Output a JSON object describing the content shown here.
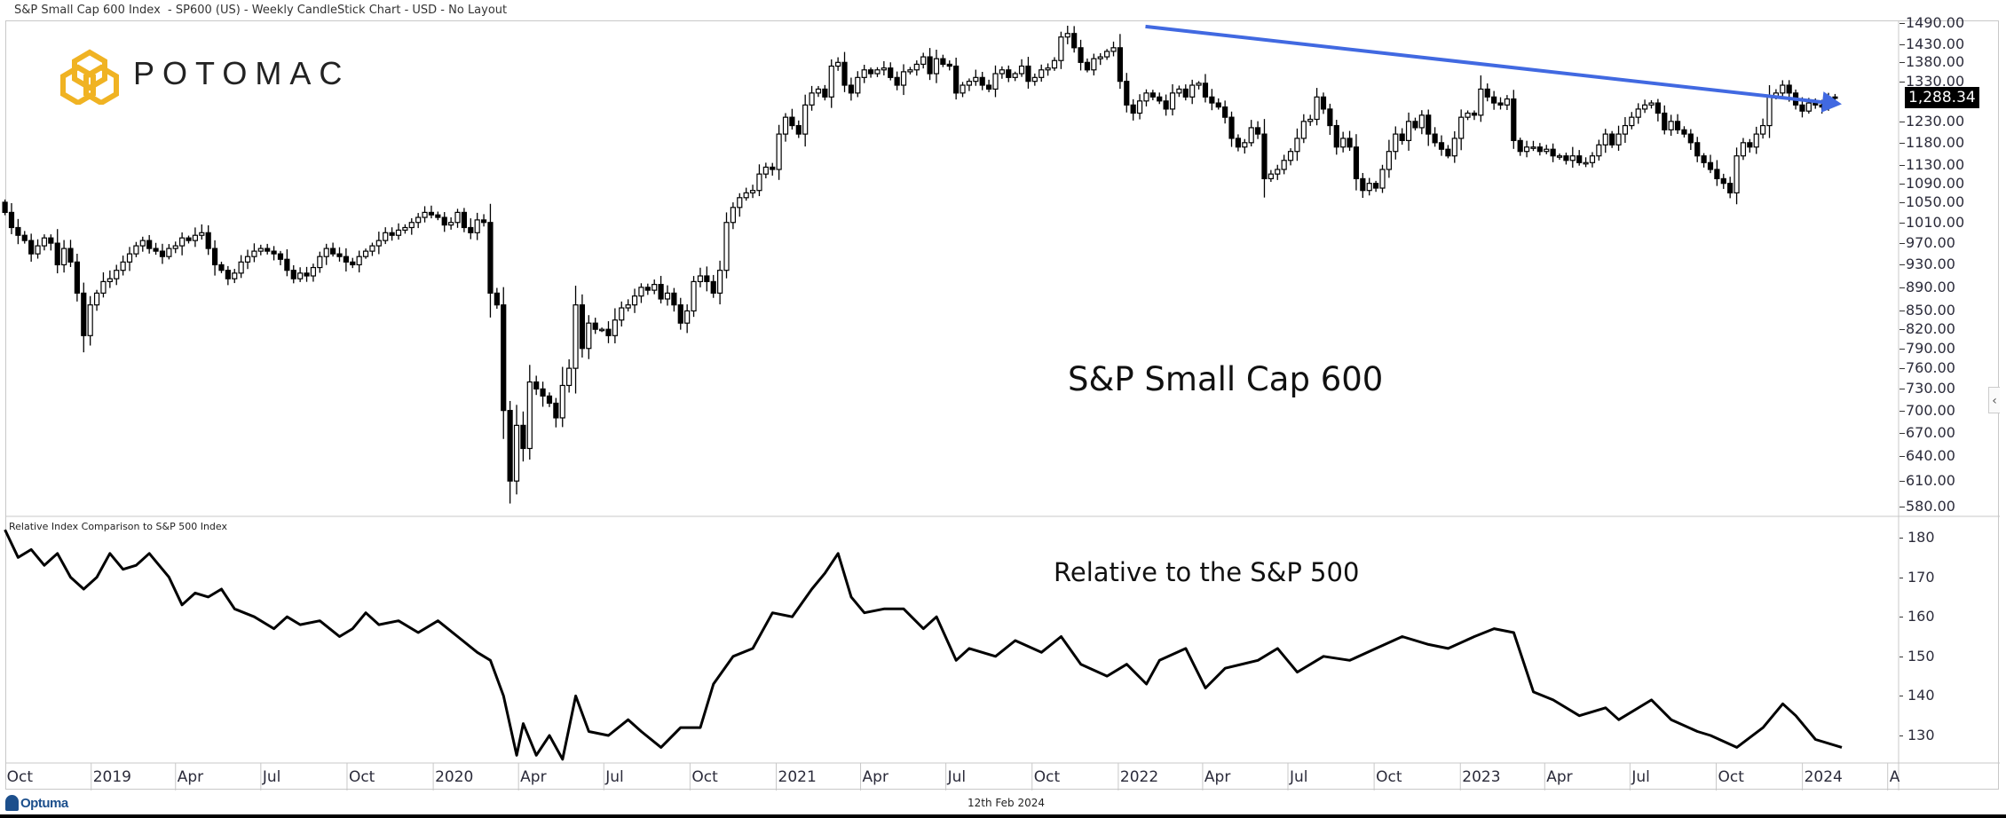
{
  "window": {
    "title": "S&P Small Cap 600 Index  - SP600 (US) - Weekly CandleStick Chart - USD - No Layout"
  },
  "logo": {
    "text": "POTOMAC",
    "color": "#F0B323",
    "icon": "hexagon-knot-icon"
  },
  "price_panel": {
    "annotation": "S&P Small Cap 600",
    "last_price_label": "1,288.34",
    "axis_ticks": [
      "1490.00",
      "1430.00",
      "1380.00",
      "1330.00",
      "1230.00",
      "1180.00",
      "1130.00",
      "1090.00",
      "1050.00",
      "1010.00",
      "970.00",
      "930.00",
      "890.00",
      "850.00",
      "820.00",
      "790.00",
      "760.00",
      "730.00",
      "700.00",
      "670.00",
      "640.00",
      "610.00",
      "580.00"
    ]
  },
  "relative_panel": {
    "title": "Relative Index Comparison to S&P 500 Index",
    "annotation": "Relative to the S&P 500",
    "axis_ticks": [
      "180",
      "170",
      "160",
      "150",
      "140",
      "130"
    ]
  },
  "x_axis": {
    "ticks": [
      {
        "label": "Oct",
        "date": "2018-10-01"
      },
      {
        "label": "2019",
        "date": "2019-01-01"
      },
      {
        "label": "Apr",
        "date": "2019-04-01"
      },
      {
        "label": "Jul",
        "date": "2019-07-01"
      },
      {
        "label": "Oct",
        "date": "2019-10-01"
      },
      {
        "label": "2020",
        "date": "2020-01-01"
      },
      {
        "label": "Apr",
        "date": "2020-04-01"
      },
      {
        "label": "Jul",
        "date": "2020-07-01"
      },
      {
        "label": "Oct",
        "date": "2020-10-01"
      },
      {
        "label": "2021",
        "date": "2021-01-01"
      },
      {
        "label": "Apr",
        "date": "2021-04-01"
      },
      {
        "label": "Jul",
        "date": "2021-07-01"
      },
      {
        "label": "Oct",
        "date": "2021-10-01"
      },
      {
        "label": "2022",
        "date": "2022-01-01"
      },
      {
        "label": "Apr",
        "date": "2022-04-01"
      },
      {
        "label": "Jul",
        "date": "2022-07-01"
      },
      {
        "label": "Oct",
        "date": "2022-10-01"
      },
      {
        "label": "2023",
        "date": "2023-01-01"
      },
      {
        "label": "Apr",
        "date": "2023-04-01"
      },
      {
        "label": "Jul",
        "date": "2023-07-01"
      },
      {
        "label": "Oct",
        "date": "2023-10-01"
      },
      {
        "label": "2024",
        "date": "2024-01-01"
      },
      {
        "label": "A",
        "date": "2024-04-01"
      }
    ]
  },
  "footer": {
    "brand": "Optuma",
    "date": "12th Feb 2024"
  },
  "colors": {
    "candle_down": "#000000",
    "candle_up": "#ffffff",
    "trendline": "#4169E1",
    "relative_line": "#000000"
  },
  "chart_data": [
    {
      "type": "candlestick",
      "title": "S&P Small Cap 600",
      "interval": "Weekly",
      "first_date": "2018-10-01",
      "y_scale": "log",
      "ylim": [
        580,
        1490
      ],
      "close": [
        1030,
        1000,
        985,
        975,
        950,
        965,
        980,
        970,
        930,
        960,
        935,
        880,
        810,
        860,
        880,
        900,
        905,
        920,
        935,
        950,
        965,
        975,
        960,
        955,
        945,
        960,
        965,
        980,
        975,
        985,
        990,
        960,
        930,
        920,
        905,
        915,
        935,
        945,
        955,
        960,
        955,
        950,
        940,
        920,
        905,
        915,
        910,
        925,
        945,
        960,
        950,
        945,
        935,
        930,
        945,
        955,
        965,
        975,
        990,
        985,
        995,
        1000,
        1010,
        1020,
        1030,
        1025,
        1020,
        1005,
        1010,
        1030,
        1000,
        990,
        1015,
        1010,
        880,
        860,
        700,
        610,
        680,
        650,
        740,
        730,
        720,
        710,
        690,
        735,
        760,
        860,
        790,
        830,
        820,
        820,
        810,
        835,
        855,
        860,
        875,
        890,
        885,
        895,
        870,
        880,
        860,
        830,
        850,
        900,
        910,
        900,
        880,
        920,
        1010,
        1040,
        1060,
        1070,
        1075,
        1110,
        1125,
        1120,
        1200,
        1240,
        1220,
        1200,
        1270,
        1300,
        1310,
        1290,
        1370,
        1380,
        1320,
        1300,
        1340,
        1360,
        1350,
        1360,
        1365,
        1340,
        1320,
        1355,
        1360,
        1375,
        1395,
        1350,
        1390,
        1375,
        1370,
        1300,
        1320,
        1330,
        1340,
        1320,
        1310,
        1350,
        1360,
        1340,
        1350,
        1370,
        1330,
        1340,
        1360,
        1365,
        1385,
        1450,
        1460,
        1420,
        1380,
        1360,
        1390,
        1395,
        1410,
        1420,
        1330,
        1270,
        1250,
        1280,
        1300,
        1290,
        1280,
        1260,
        1300,
        1310,
        1290,
        1320,
        1325,
        1290,
        1275,
        1265,
        1240,
        1190,
        1170,
        1180,
        1215,
        1200,
        1100,
        1110,
        1120,
        1140,
        1160,
        1190,
        1230,
        1235,
        1290,
        1260,
        1220,
        1170,
        1190,
        1170,
        1100,
        1075,
        1090,
        1080,
        1120,
        1160,
        1200,
        1185,
        1230,
        1215,
        1245,
        1200,
        1180,
        1165,
        1150,
        1190,
        1240,
        1250,
        1245,
        1310,
        1290,
        1275,
        1270,
        1285,
        1185,
        1160,
        1170,
        1170,
        1160,
        1165,
        1150,
        1150,
        1140,
        1150,
        1135,
        1135,
        1150,
        1175,
        1200,
        1175,
        1200,
        1220,
        1240,
        1260,
        1270,
        1275,
        1250,
        1210,
        1230,
        1210,
        1200,
        1180,
        1150,
        1135,
        1120,
        1100,
        1090,
        1070,
        1150,
        1180,
        1170,
        1200,
        1220,
        1290,
        1300,
        1320,
        1300,
        1270,
        1255,
        1275,
        1270,
        1265,
        1290,
        1288.34
      ],
      "trendline": {
        "start": {
          "date": "2022-01-30",
          "value": 1480
        },
        "end": {
          "date": "2024-02-12",
          "value": 1272
        },
        "arrow": true
      }
    },
    {
      "type": "line",
      "title": "Relative Index Comparison to S&P 500 Index",
      "ylim": [
        125,
        183
      ],
      "points": [
        [
          "2018-10-01",
          182
        ],
        [
          "2018-10-15",
          175
        ],
        [
          "2018-10-29",
          177
        ],
        [
          "2018-11-12",
          173
        ],
        [
          "2018-11-26",
          176
        ],
        [
          "2018-12-10",
          170
        ],
        [
          "2018-12-24",
          167
        ],
        [
          "2019-01-07",
          170
        ],
        [
          "2019-01-21",
          176
        ],
        [
          "2019-02-04",
          172
        ],
        [
          "2019-02-18",
          173
        ],
        [
          "2019-03-04",
          176
        ],
        [
          "2019-03-25",
          170
        ],
        [
          "2019-04-08",
          163
        ],
        [
          "2019-04-22",
          166
        ],
        [
          "2019-05-06",
          165
        ],
        [
          "2019-05-20",
          167
        ],
        [
          "2019-06-03",
          162
        ],
        [
          "2019-06-24",
          160
        ],
        [
          "2019-07-15",
          157
        ],
        [
          "2019-07-29",
          160
        ],
        [
          "2019-08-12",
          158
        ],
        [
          "2019-09-02",
          159
        ],
        [
          "2019-09-23",
          155
        ],
        [
          "2019-10-07",
          157
        ],
        [
          "2019-10-21",
          161
        ],
        [
          "2019-11-04",
          158
        ],
        [
          "2019-11-25",
          159
        ],
        [
          "2019-12-16",
          156
        ],
        [
          "2020-01-06",
          159
        ],
        [
          "2020-01-27",
          155
        ],
        [
          "2020-02-17",
          151
        ],
        [
          "2020-03-02",
          149
        ],
        [
          "2020-03-16",
          140
        ],
        [
          "2020-03-30",
          125
        ],
        [
          "2020-04-06",
          133
        ],
        [
          "2020-04-20",
          125
        ],
        [
          "2020-05-04",
          130
        ],
        [
          "2020-05-18",
          124
        ],
        [
          "2020-06-01",
          140
        ],
        [
          "2020-06-15",
          131
        ],
        [
          "2020-07-06",
          130
        ],
        [
          "2020-07-27",
          134
        ],
        [
          "2020-08-10",
          131
        ],
        [
          "2020-08-31",
          127
        ],
        [
          "2020-09-21",
          132
        ],
        [
          "2020-10-12",
          132
        ],
        [
          "2020-10-26",
          143
        ],
        [
          "2020-11-16",
          150
        ],
        [
          "2020-12-07",
          152
        ],
        [
          "2020-12-28",
          161
        ],
        [
          "2021-01-18",
          160
        ],
        [
          "2021-02-08",
          167
        ],
        [
          "2021-02-22",
          171
        ],
        [
          "2021-03-08",
          176
        ],
        [
          "2021-03-22",
          165
        ],
        [
          "2021-04-05",
          161
        ],
        [
          "2021-04-26",
          162
        ],
        [
          "2021-05-17",
          162
        ],
        [
          "2021-06-07",
          157
        ],
        [
          "2021-06-21",
          160
        ],
        [
          "2021-07-12",
          149
        ],
        [
          "2021-07-26",
          152
        ],
        [
          "2021-08-23",
          150
        ],
        [
          "2021-09-13",
          154
        ],
        [
          "2021-10-11",
          151
        ],
        [
          "2021-11-01",
          155
        ],
        [
          "2021-11-22",
          148
        ],
        [
          "2021-12-20",
          145
        ],
        [
          "2022-01-10",
          148
        ],
        [
          "2022-01-31",
          143
        ],
        [
          "2022-02-14",
          149
        ],
        [
          "2022-03-14",
          152
        ],
        [
          "2022-04-04",
          142
        ],
        [
          "2022-04-25",
          147
        ],
        [
          "2022-05-30",
          149
        ],
        [
          "2022-06-20",
          152
        ],
        [
          "2022-07-11",
          146
        ],
        [
          "2022-08-08",
          150
        ],
        [
          "2022-09-05",
          149
        ],
        [
          "2022-10-03",
          152
        ],
        [
          "2022-10-31",
          155
        ],
        [
          "2022-11-28",
          153
        ],
        [
          "2022-12-19",
          152
        ],
        [
          "2023-01-16",
          155
        ],
        [
          "2023-02-06",
          157
        ],
        [
          "2023-02-27",
          156
        ],
        [
          "2023-03-20",
          141
        ],
        [
          "2023-04-10",
          139
        ],
        [
          "2023-05-08",
          135
        ],
        [
          "2023-06-05",
          137
        ],
        [
          "2023-06-19",
          134
        ],
        [
          "2023-07-24",
          139
        ],
        [
          "2023-08-14",
          134
        ],
        [
          "2023-09-11",
          131
        ],
        [
          "2023-09-25",
          130
        ],
        [
          "2023-10-23",
          127
        ],
        [
          "2023-11-20",
          132
        ],
        [
          "2023-12-11",
          138
        ],
        [
          "2023-12-25",
          135
        ],
        [
          "2024-01-15",
          129
        ],
        [
          "2024-02-12",
          127
        ]
      ]
    }
  ]
}
